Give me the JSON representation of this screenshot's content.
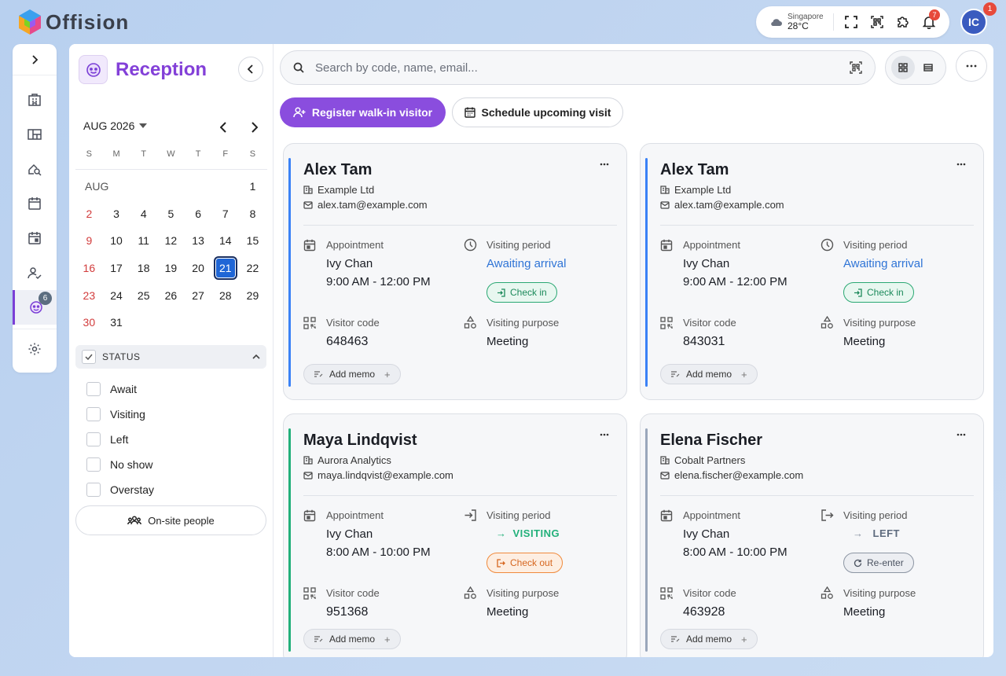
{
  "brand": {
    "name": "Offision"
  },
  "topbar": {
    "weather_city": "Singapore",
    "weather_temp": "28°C",
    "notification_count": "7",
    "avatar_initials": "IC",
    "avatar_badge": "1"
  },
  "rail": {
    "reception_badge": "6"
  },
  "sidebar": {
    "title": "Reception",
    "calendar": {
      "month_label": "AUG 2026",
      "days_of_week": [
        "S",
        "M",
        "T",
        "W",
        "T",
        "F",
        "S"
      ],
      "month_short": "AUG",
      "selected_day": "21"
    },
    "status": {
      "header": "STATUS",
      "options": [
        "Await",
        "Visiting",
        "Left",
        "No show",
        "Overstay"
      ]
    },
    "onsite_label": "On-site people"
  },
  "toolbar": {
    "search_placeholder": "Search by code, name, email...",
    "register_label": "Register walk-in visitor",
    "schedule_label": "Schedule upcoming visit"
  },
  "labels": {
    "appointment": "Appointment",
    "visiting_period": "Visiting period",
    "visitor_code": "Visitor code",
    "visiting_purpose": "Visiting purpose",
    "add_memo": "Add memo"
  },
  "cards": [
    {
      "name": "Alex Tam",
      "company": "Example Ltd",
      "email": "alex.tam@example.com",
      "host": "Ivy Chan",
      "time": "9:00 AM - 12:00 PM",
      "status": "Awaiting arrival",
      "action": "Check in",
      "code": "648463",
      "purpose": "Meeting",
      "accent": "#3b82f6"
    },
    {
      "name": "Alex Tam",
      "company": "Example Ltd",
      "email": "alex.tam@example.com",
      "host": "Ivy Chan",
      "time": "9:00 AM - 12:00 PM",
      "status": "Awaiting arrival",
      "action": "Check in",
      "code": "843031",
      "purpose": "Meeting",
      "accent": "#3b82f6"
    },
    {
      "name": "Maya Lindqvist",
      "company": "Aurora Analytics",
      "email": "maya.lindqvist@example.com",
      "host": "Ivy Chan",
      "time": "8:00 AM - 10:00 PM",
      "status": "VISITING",
      "action": "Check out",
      "code": "951368",
      "purpose": "Meeting",
      "accent": "#22b07a"
    },
    {
      "name": "Elena Fischer",
      "company": "Cobalt Partners",
      "email": "elena.fischer@example.com",
      "host": "Ivy Chan",
      "time": "8:00 AM - 10:00 PM",
      "status": "LEFT",
      "action": "Re-enter",
      "code": "463928",
      "purpose": "Meeting",
      "accent": "#9aa7bb"
    }
  ]
}
